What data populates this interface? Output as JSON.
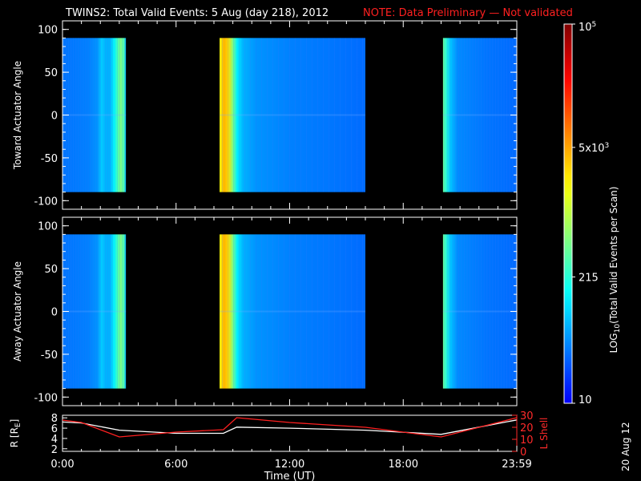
{
  "header": {
    "title": "TWINS2: Total Valid Events:  5 Aug (day 218), 2012",
    "note": "NOTE: Data Preliminary — Not validated"
  },
  "stamp": "20 Aug 12",
  "chart_data": [
    {
      "type": "heatmap",
      "name_ref": "top",
      "ylabel": "Toward Actuator Angle",
      "ylim": [
        -110,
        110
      ],
      "yticks": [
        "100",
        "50",
        "0",
        "-50",
        "-100"
      ],
      "xlim": [
        0,
        24
      ],
      "data_y_range": [
        -90,
        90
      ],
      "data_segments": [
        {
          "start_hour": 0.0,
          "end_hour": 3.35,
          "level": "low",
          "bright_band_hours": [
            2.1,
            3.0,
            3.3
          ]
        },
        {
          "start_hour": 8.3,
          "end_hour": 16.0,
          "level": "high-start",
          "bright_band_hours": [
            8.3,
            9.2,
            10.0
          ]
        },
        {
          "start_hour": 20.1,
          "end_hour": 24.0,
          "level": "low",
          "bright_band_hours": [
            20.1,
            20.6
          ]
        }
      ]
    },
    {
      "type": "heatmap",
      "name_ref": "middle",
      "ylabel": "Away Actuator Angle",
      "ylim": [
        -110,
        110
      ],
      "yticks": [
        "100",
        "50",
        "0",
        "-50",
        "-100"
      ],
      "xlim": [
        0,
        24
      ],
      "data_y_range": [
        -90,
        90
      ],
      "data_segments": [
        {
          "start_hour": 0.0,
          "end_hour": 3.35,
          "level": "low",
          "bright_band_hours": [
            2.1,
            3.0,
            3.3
          ]
        },
        {
          "start_hour": 8.3,
          "end_hour": 16.0,
          "level": "high-start",
          "bright_band_hours": [
            8.3,
            9.2,
            10.0
          ]
        },
        {
          "start_hour": 20.1,
          "end_hour": 24.0,
          "level": "low",
          "bright_band_hours": [
            20.1,
            20.6
          ]
        }
      ]
    },
    {
      "type": "line",
      "name_ref": "bottom",
      "ylabel_left": "R [R",
      "ylabel_left_sub": "E",
      "ylabel_left_close": "]",
      "ylabel_right": "L Shell",
      "ylim_left": [
        1.5,
        8.5
      ],
      "yticks_left": [
        "8",
        "6",
        "4",
        "2"
      ],
      "ylim_right": [
        0,
        30
      ],
      "yticks_right": [
        "30",
        "20",
        "10",
        "0"
      ],
      "xlabel": "Time (UT)",
      "xticks": [
        "0:00",
        "6:00",
        "12:00",
        "18:00",
        "23:59"
      ],
      "xlim": [
        0,
        24
      ],
      "series": [
        {
          "color": "#ffffff",
          "x": [
            0,
            1,
            3,
            6,
            8.5,
            9.2,
            12,
            16,
            20,
            22,
            24
          ],
          "y": [
            7.2,
            7.0,
            5.6,
            5.0,
            5.0,
            6.2,
            6.0,
            5.6,
            4.8,
            6.2,
            7.6
          ]
        },
        {
          "color": "#ff2020",
          "x": [
            0,
            1,
            3,
            6,
            8.5,
            9.2,
            12,
            16,
            20,
            22,
            24
          ],
          "y": [
            26,
            24,
            12,
            16,
            18,
            28,
            24,
            20,
            12,
            20,
            28
          ]
        }
      ]
    },
    {
      "type": "colorbar",
      "name_ref": "colorbar",
      "label": "LOG",
      "label_sub": "10",
      "label_rest": "(Total Valid Events per Scan)",
      "tick_labels": [
        {
          "value": 100000,
          "main": "10",
          "sup": "5"
        },
        {
          "value": 5000,
          "main": "5x10",
          "sup": "3"
        },
        {
          "value": 215,
          "main": "215",
          "sup": ""
        },
        {
          "value": 10,
          "main": "10",
          "sup": ""
        }
      ],
      "log_range": [
        1,
        5
      ]
    }
  ]
}
